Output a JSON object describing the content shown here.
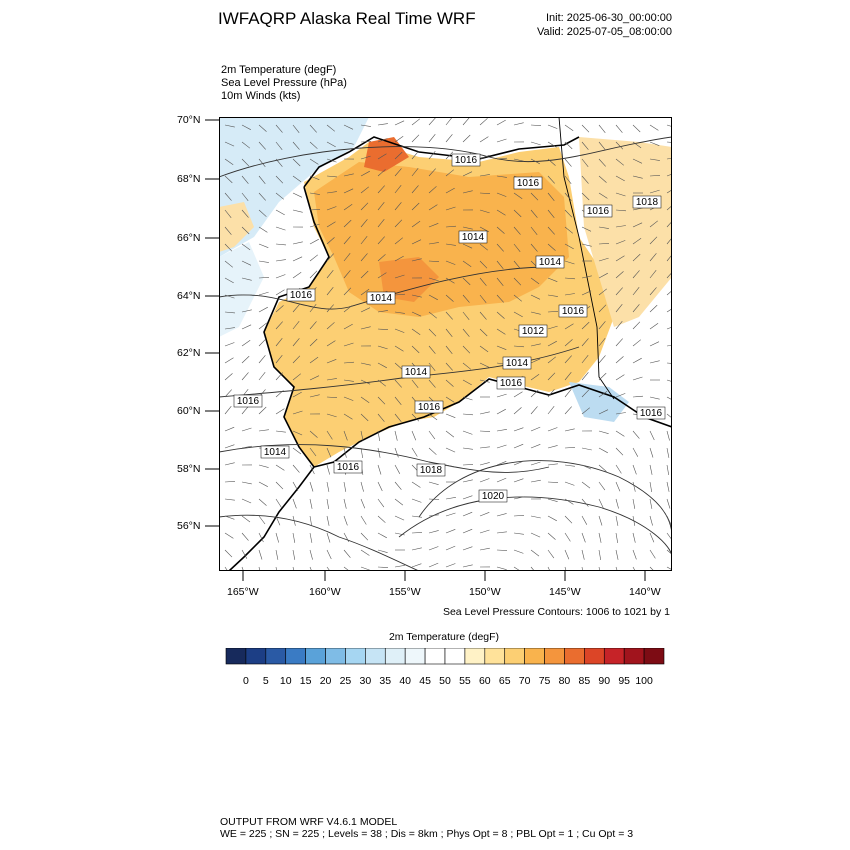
{
  "header": {
    "title": "IWFAQRP Alaska Real Time WRF",
    "init": "Init: 2025-06-30_00:00:00",
    "valid": "Valid: 2025-07-05_08:00:00"
  },
  "fields": [
    "2m Temperature   (degF)",
    "Sea Level Pressure   (hPa)",
    "10m Winds   (kts)"
  ],
  "map": {
    "lat_labels": [
      "70°N",
      "68°N",
      "66°N",
      "64°N",
      "62°N",
      "60°N",
      "58°N",
      "56°N"
    ],
    "lon_labels": [
      "165°W",
      "160°W",
      "155°W",
      "150°W",
      "145°W",
      "140°W"
    ],
    "pressure_labels": [
      "1016",
      "1016",
      "1016",
      "1018",
      "1014",
      "1014",
      "1014",
      "1016",
      "1016",
      "1014",
      "1012",
      "1016",
      "1014",
      "1016",
      "1016",
      "1014",
      "1016",
      "1018",
      "1020",
      "1016"
    ],
    "colors": {
      "land_warm": "#f9b34d",
      "land_hot": "#f08b3a",
      "cool": "#cfe7f7",
      "ocean": "#ffffff"
    }
  },
  "contour_note": "Sea Level Pressure Contours: 1006 to 1021 by 1",
  "colorbar": {
    "title": "2m Temperature  (degF)",
    "labels": [
      "0",
      "5",
      "10",
      "15",
      "20",
      "25",
      "30",
      "35",
      "40",
      "45",
      "50",
      "55",
      "60",
      "65",
      "70",
      "75",
      "80",
      "85",
      "90",
      "95",
      "100"
    ],
    "colors": [
      "#172a5c",
      "#1c3e85",
      "#2a5aa5",
      "#3a7bc4",
      "#5aa2d9",
      "#7fbce6",
      "#a6d6f2",
      "#c6e4f5",
      "#dff0f8",
      "#eef7fb",
      "#ffffff",
      "#ffffff",
      "#fff2c6",
      "#ffe29a",
      "#fccf73",
      "#f9b34d",
      "#f4953d",
      "#ea6d2f",
      "#dc4527",
      "#c62328",
      "#a1141d",
      "#7d0c14"
    ]
  },
  "footer": {
    "line1": "OUTPUT FROM WRF V4.6.1 MODEL",
    "line2": "WE = 225 ; SN = 225 ; Levels = 38 ; Dis = 8km ; Phys Opt = 8 ; PBL Opt = 1 ; Cu Opt = 3"
  }
}
